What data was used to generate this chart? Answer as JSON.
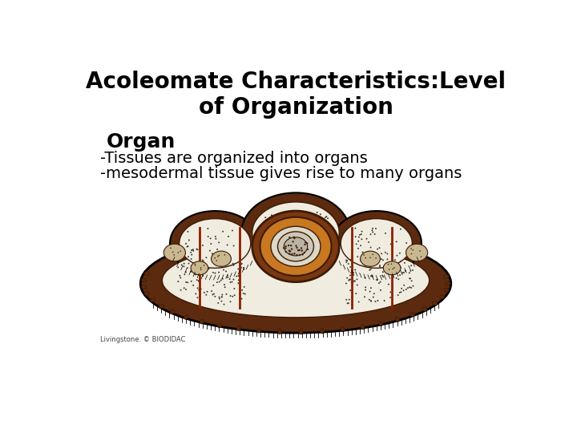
{
  "title_line1": "Acoleomate Characteristics:Level",
  "title_line2": "of Organization",
  "subtitle": "Organ",
  "bullets": [
    "-Tissues are organized into organs",
    "-mesodermal tissue gives rise to many organs"
  ],
  "title_fontsize": 20,
  "subtitle_fontsize": 18,
  "bullet_fontsize": 14,
  "title_fontweight": "bold",
  "subtitle_fontweight": "bold",
  "background_color": "#ffffff",
  "text_color": "#000000",
  "watermark": "Livingstone. © BIODIDAC",
  "outer_brown": "#5c2a0e",
  "inner_cream": "#f0ece0",
  "dark_brown": "#3d1a06",
  "orange_brown": "#c87820",
  "mid_brown": "#7a3810",
  "red_line": "#8B2000",
  "spot_color": "#333333"
}
